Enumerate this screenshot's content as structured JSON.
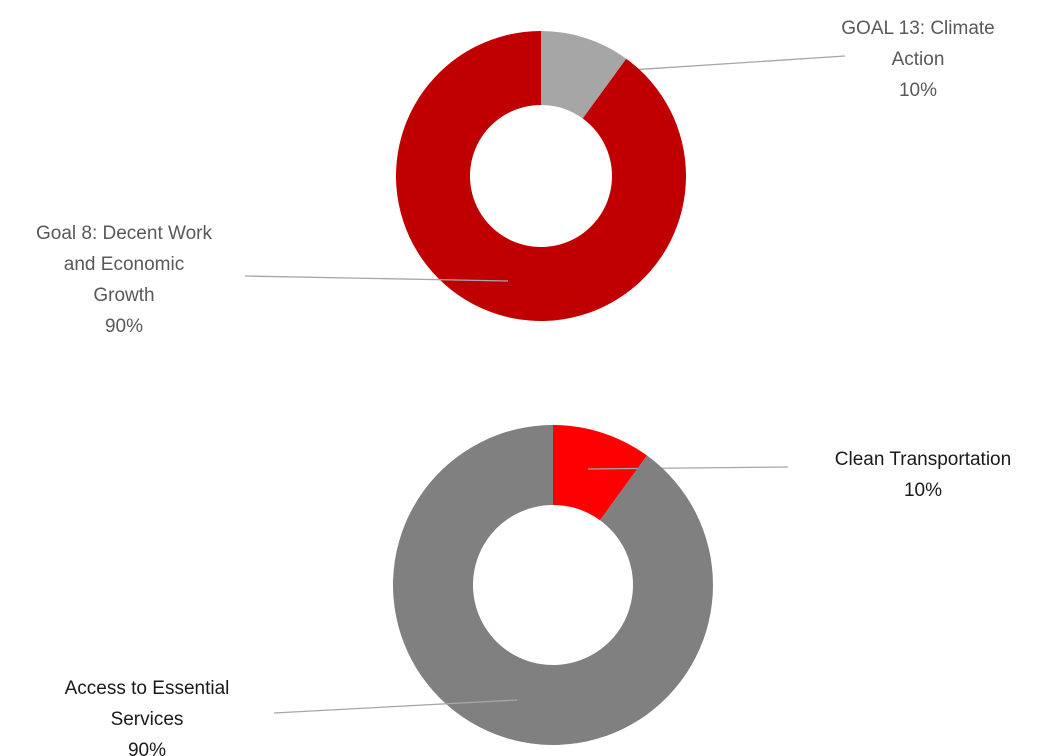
{
  "chart_data": [
    {
      "type": "pie",
      "variant": "donut",
      "slices": [
        {
          "label_lines": [
            "GOAL 13: Climate",
            "Action"
          ],
          "value": 10,
          "value_label": "10%",
          "color": "#a6a6a6"
        },
        {
          "label_lines": [
            "Goal 8: Decent Work",
            "and Economic",
            "Growth"
          ],
          "value": 90,
          "value_label": "90%",
          "color": "#c00000"
        }
      ]
    },
    {
      "type": "pie",
      "variant": "donut",
      "slices": [
        {
          "label_lines": [
            "Clean Transportation"
          ],
          "value": 10,
          "value_label": "10%",
          "color": "#ff0000"
        },
        {
          "label_lines": [
            "Access to Essential",
            "Services"
          ],
          "value": 90,
          "value_label": "90%",
          "color": "#808080"
        }
      ]
    }
  ]
}
